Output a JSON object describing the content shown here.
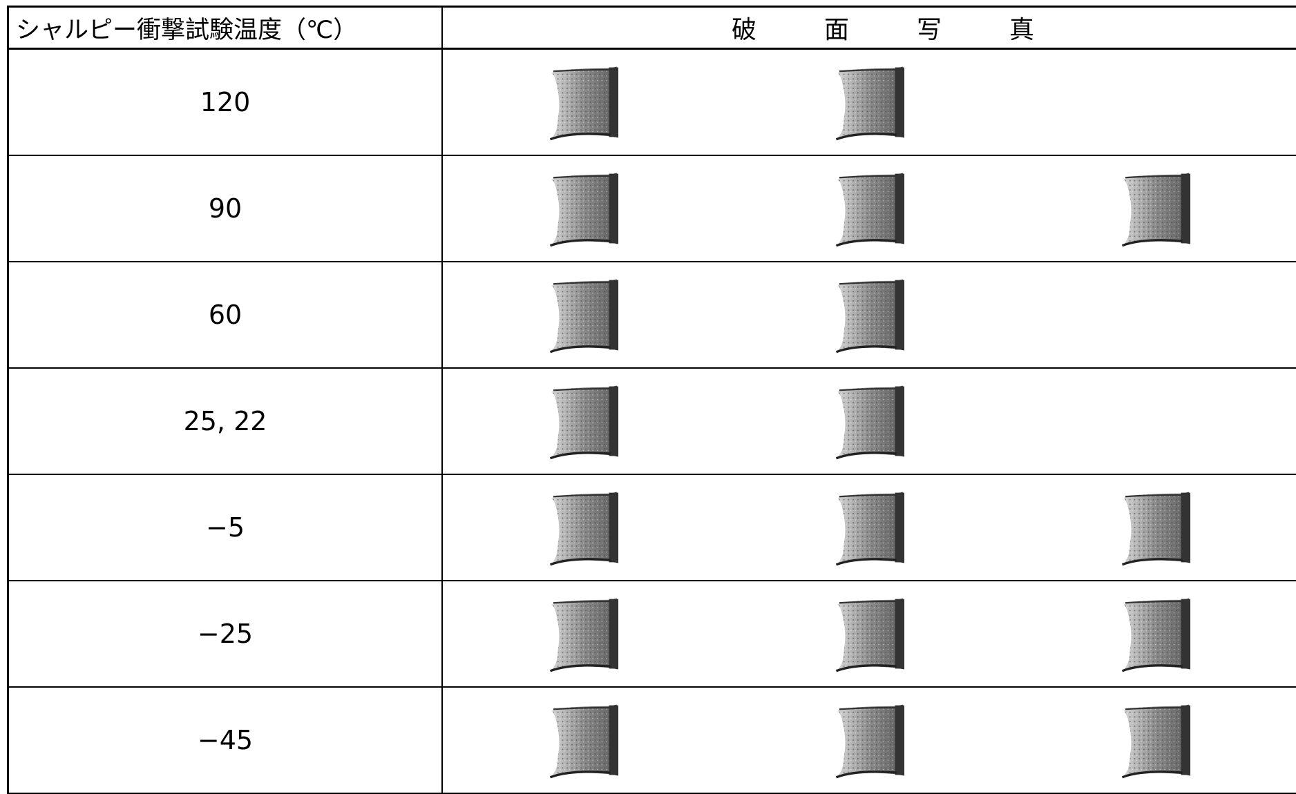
{
  "table": {
    "header": [
      "シャルピー衝撃試験温度（℃）",
      "破面写真"
    ],
    "rows": [
      "120",
      "90",
      "60",
      "25, 22",
      "−5",
      "−25",
      "−45"
    ]
  }
}
